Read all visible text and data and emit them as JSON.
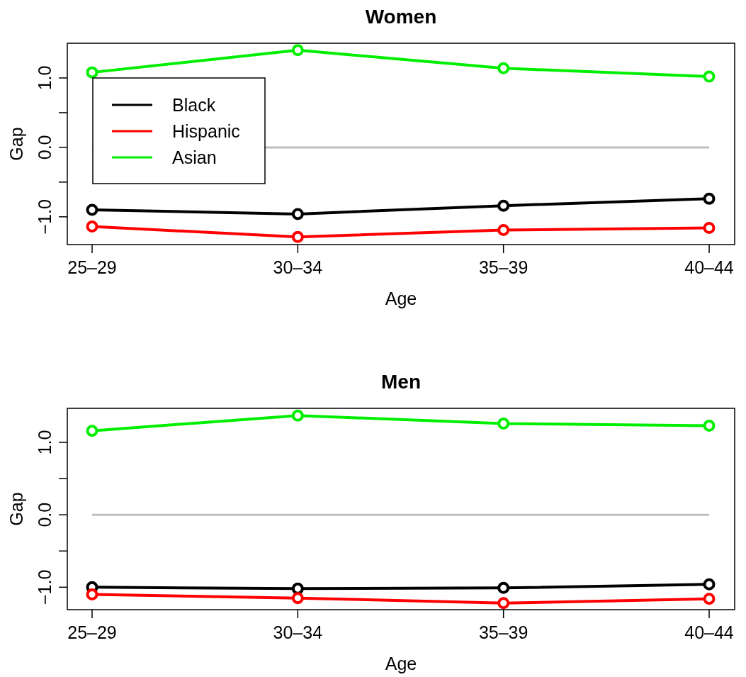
{
  "chart_data": [
    {
      "type": "line",
      "title": "Women",
      "xlabel": "Age",
      "ylabel": "Gap",
      "categories": [
        "25–29",
        "30–34",
        "35–39",
        "40–44"
      ],
      "ylim": [
        -1.4,
        1.5
      ],
      "yticks": [
        {
          "value": -1.0,
          "label": "−1.0"
        },
        {
          "value": -0.5,
          "label": null
        },
        {
          "value": 0.0,
          "label": "0.0"
        },
        {
          "value": 0.5,
          "label": null
        },
        {
          "value": 1.0,
          "label": "1.0"
        }
      ],
      "marker": "circle",
      "legend": "top left",
      "ref_lines": [
        {
          "axis": "y",
          "value": 0,
          "color": "#bebebe"
        }
      ],
      "series": [
        {
          "name": "Black",
          "color": "#000000",
          "values": [
            -0.9,
            -0.96,
            -0.84,
            -0.74
          ]
        },
        {
          "name": "Hispanic",
          "color": "#ff0000",
          "values": [
            -1.14,
            -1.29,
            -1.19,
            -1.16
          ]
        },
        {
          "name": "Asian",
          "color": "#00ee00",
          "values": [
            1.08,
            1.4,
            1.14,
            1.02
          ]
        }
      ]
    },
    {
      "type": "line",
      "title": "Men",
      "xlabel": "Age",
      "ylabel": "Gap",
      "categories": [
        "25–29",
        "30–34",
        "35–39",
        "40–44"
      ],
      "ylim": [
        -1.31,
        1.47
      ],
      "yticks": [
        {
          "value": -1.0,
          "label": "−1.0"
        },
        {
          "value": -0.5,
          "label": null
        },
        {
          "value": 0.0,
          "label": "0.0"
        },
        {
          "value": 0.5,
          "label": null
        },
        {
          "value": 1.0,
          "label": "1.0"
        }
      ],
      "marker": "circle",
      "ref_lines": [
        {
          "axis": "y",
          "value": 0,
          "color": "#bebebe"
        }
      ],
      "series": [
        {
          "color": "#000000",
          "values": [
            -1.0,
            -1.02,
            -1.01,
            -0.96
          ]
        },
        {
          "color": "#ff0000",
          "values": [
            -1.1,
            -1.15,
            -1.22,
            -1.16
          ]
        },
        {
          "color": "#00ee00",
          "values": [
            1.16,
            1.37,
            1.26,
            1.23
          ]
        }
      ]
    }
  ]
}
